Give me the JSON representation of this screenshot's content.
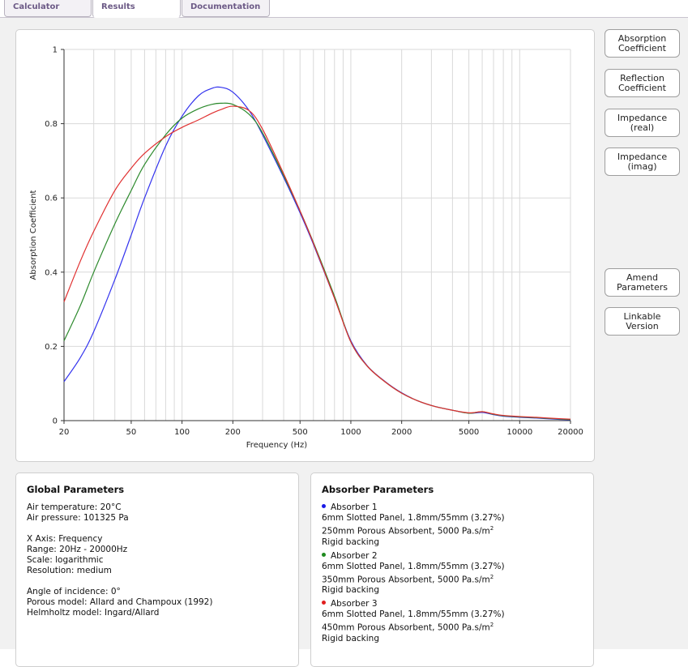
{
  "tabs": [
    {
      "label": "Calculator",
      "active": false
    },
    {
      "label": "Results",
      "active": true
    },
    {
      "label": "Documentation",
      "active": false
    }
  ],
  "buttons": {
    "absorption": "Absorption\nCoefficient",
    "reflection": "Reflection\nCoefficient",
    "impedance_real": "Impedance\n(real)",
    "impedance_imag": "Impedance\n(imag)",
    "amend": "Amend\nParameters",
    "linkable": "Linkable\nVersion"
  },
  "chart_data": {
    "type": "line",
    "xlabel": "Frequency (Hz)",
    "ylabel": "Absorption Coefficient",
    "x_scale": "log",
    "xlim": [
      20,
      20000
    ],
    "ylim": [
      0,
      1
    ],
    "x_ticks": [
      20,
      50,
      100,
      200,
      500,
      1000,
      2000,
      5000,
      10000,
      20000
    ],
    "y_ticks": [
      0,
      0.2,
      0.4,
      0.6,
      0.8,
      1
    ],
    "y_tick_labels": [
      "0",
      "0.2",
      "0.4",
      "0.6",
      "0.8",
      "1"
    ],
    "grid": true,
    "x": [
      20,
      25,
      30,
      40,
      50,
      60,
      80,
      100,
      125,
      150,
      170,
      200,
      250,
      300,
      400,
      500,
      600,
      800,
      1000,
      1250,
      1600,
      2000,
      2500,
      3150,
      4000,
      5000,
      6000,
      7000,
      8000,
      10000,
      12500,
      16000,
      20000
    ],
    "series": [
      {
        "color": "#3333ee",
        "values": [
          0.105,
          0.17,
          0.24,
          0.38,
          0.5,
          0.6,
          0.74,
          0.82,
          0.875,
          0.895,
          0.898,
          0.885,
          0.835,
          0.77,
          0.655,
          0.56,
          0.475,
          0.33,
          0.215,
          0.148,
          0.105,
          0.075,
          0.053,
          0.038,
          0.028,
          0.02,
          0.022,
          0.016,
          0.012,
          0.009,
          0.007,
          0.004,
          0.002
        ]
      },
      {
        "color": "#2d8a2d",
        "values": [
          0.215,
          0.31,
          0.4,
          0.53,
          0.62,
          0.69,
          0.77,
          0.815,
          0.84,
          0.852,
          0.855,
          0.852,
          0.825,
          0.775,
          0.66,
          0.565,
          0.48,
          0.335,
          0.212,
          0.147,
          0.104,
          0.074,
          0.053,
          0.038,
          0.028,
          0.02,
          0.024,
          0.017,
          0.013,
          0.01,
          0.008,
          0.005,
          0.003
        ]
      },
      {
        "color": "#e03030",
        "values": [
          0.32,
          0.43,
          0.51,
          0.62,
          0.68,
          0.72,
          0.765,
          0.79,
          0.81,
          0.828,
          0.838,
          0.847,
          0.835,
          0.785,
          0.665,
          0.565,
          0.478,
          0.33,
          0.212,
          0.147,
          0.104,
          0.074,
          0.053,
          0.038,
          0.028,
          0.021,
          0.024,
          0.018,
          0.014,
          0.011,
          0.009,
          0.006,
          0.004
        ]
      }
    ]
  },
  "global": {
    "title": "Global Parameters",
    "air_temp": "Air temperature: 20°C",
    "air_pressure": "Air pressure: 101325 Pa",
    "x_axis": "X Axis: Frequency",
    "range": "Range: 20Hz - 20000Hz",
    "scale": "Scale: logarithmic",
    "resolution": "Resolution: medium",
    "angle": "Angle of incidence: 0°",
    "porous_model": "Porous model: Allard and Champoux (1992)",
    "helmholtz_model": "Helmholtz model: Ingard/Allard"
  },
  "absorbers": {
    "title": "Absorber Parameters",
    "items": [
      {
        "name": "Absorber 1",
        "color": "#1a1ae6",
        "line1": "6mm Slotted Panel, 1.8mm/55mm (3.27%)",
        "line2": "250mm Porous Absorbent, 5000 Pa.s/m",
        "sup": "2",
        "line3": "Rigid backing"
      },
      {
        "name": "Absorber 2",
        "color": "#1f8a1f",
        "line1": "6mm Slotted Panel, 1.8mm/55mm (3.27%)",
        "line2": "350mm Porous Absorbent, 5000 Pa.s/m",
        "sup": "2",
        "line3": "Rigid backing"
      },
      {
        "name": "Absorber 3",
        "color": "#e01e1e",
        "line1": "6mm Slotted Panel, 1.8mm/55mm (3.27%)",
        "line2": "450mm Porous Absorbent, 5000 Pa.s/m",
        "sup": "2",
        "line3": "Rigid backing"
      }
    ]
  }
}
